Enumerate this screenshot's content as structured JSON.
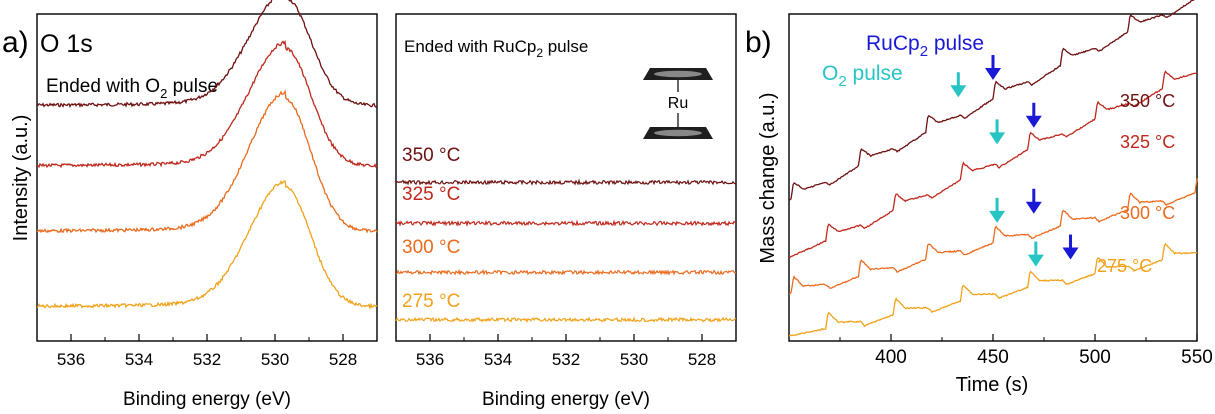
{
  "panel_a": {
    "label": "a)",
    "title": "O 1s",
    "ylabel": "Intensity (a.u.)"
  },
  "panel_b": {
    "label": "b)"
  },
  "colors": {
    "350": "#6e1010",
    "325": "#c0281c",
    "300": "#ea6b1e",
    "275": "#f2a21a",
    "cyan_arrow": "#27c4c4",
    "blue_arrow": "#1a1ad6",
    "ligand_fill": "#1f1f1f"
  },
  "chart_data": [
    {
      "type": "line",
      "title": "Ended with O₂ pulse",
      "title_parts": {
        "pre": "Ended with O",
        "sub": "2",
        "post": " pulse"
      },
      "xlabel": "Binding energy (eV)",
      "ylabel": "Intensity (a.u.)",
      "xlim": [
        537,
        527
      ],
      "x_reversed": true,
      "xticks": [
        536,
        534,
        532,
        530,
        528
      ],
      "peak_center_eV": 529.7,
      "series": [
        {
          "name": "350 °C",
          "baseline_frac": 0.28,
          "peak_frac": 0.33
        },
        {
          "name": "325 °C",
          "baseline_frac": 0.465,
          "peak_frac": 0.36
        },
        {
          "name": "300 °C",
          "baseline_frac": 0.665,
          "peak_frac": 0.405
        },
        {
          "name": "275 °C",
          "baseline_frac": 0.895,
          "peak_frac": 0.365
        }
      ]
    },
    {
      "type": "line",
      "title": "Ended with RuCp₂ pulse",
      "title_parts": {
        "pre": "Ended with RuCp",
        "sub": "2",
        "post": " pulse"
      },
      "xlabel": "Binding energy (eV)",
      "xlim": [
        537,
        527
      ],
      "x_reversed": true,
      "xticks": [
        536,
        534,
        532,
        530,
        528
      ],
      "inset_label": "Ru",
      "series": [
        {
          "name": "350 °C",
          "baseline_frac": 0.515
        },
        {
          "name": "325 °C",
          "baseline_frac": 0.64
        },
        {
          "name": "300 °C",
          "baseline_frac": 0.79
        },
        {
          "name": "275 °C",
          "baseline_frac": 0.935
        }
      ]
    },
    {
      "type": "line",
      "xlabel": "Time (s)",
      "ylabel": "Mass change (a.u.)",
      "xlim": [
        350,
        550
      ],
      "xticks": [
        400,
        450,
        500,
        550
      ],
      "annotations": {
        "ruc_text": {
          "pre": "RuCp",
          "sub": "2",
          "post": " pulse"
        },
        "o2_text": {
          "pre": "O",
          "sub": "2",
          "post": " pulse"
        }
      },
      "series": [
        {
          "name": "350 °C",
          "cycle_start": 351,
          "period": 33,
          "n_cycles": 6,
          "start_frac": 0.57,
          "end_frac": -0.05
        },
        {
          "name": "325 °C",
          "cycle_start": 368,
          "period": 33,
          "n_cycles": 6,
          "start_frac": 0.745,
          "end_frac": 0.18
        },
        {
          "name": "300 °C",
          "cycle_start": 351,
          "period": 33,
          "n_cycles": 6,
          "start_frac": 0.855,
          "end_frac": 0.545
        },
        {
          "name": "275 °C",
          "cycle_start": 368,
          "period": 33,
          "n_cycles": 6,
          "start_frac": 0.985,
          "end_frac": 0.73
        }
      ],
      "arrows": [
        {
          "color_key": "cyan_arrow",
          "time_s": 433,
          "series": "350 °C"
        },
        {
          "color_key": "blue_arrow",
          "time_s": 450,
          "series": "350 °C"
        },
        {
          "color_key": "cyan_arrow",
          "time_s": 452,
          "series": "325 °C"
        },
        {
          "color_key": "blue_arrow",
          "time_s": 470,
          "series": "325 °C"
        },
        {
          "color_key": "cyan_arrow",
          "time_s": 452,
          "series": "300 °C"
        },
        {
          "color_key": "blue_arrow",
          "time_s": 470,
          "series": "300 °C"
        },
        {
          "color_key": "cyan_arrow",
          "time_s": 471,
          "series": "275 °C"
        },
        {
          "color_key": "blue_arrow",
          "time_s": 488,
          "series": "275 °C"
        }
      ]
    }
  ]
}
